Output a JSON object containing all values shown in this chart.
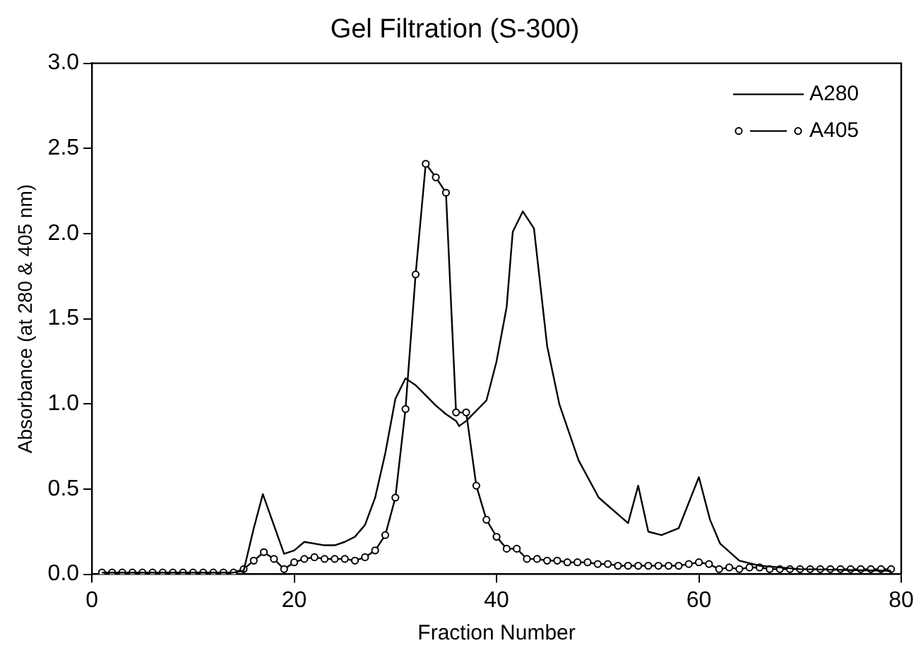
{
  "chart_data": {
    "type": "line",
    "title": "Gel Filtration (S-300)",
    "xlabel": "Fraction Number",
    "ylabel": "Absorbance (at 280 & 405 nm)",
    "xlim": [
      0,
      80
    ],
    "xticks": [
      0,
      20,
      40,
      60,
      80
    ],
    "ylim": [
      0,
      3
    ],
    "yticks": [
      {
        "value": 0,
        "label": "0.0"
      },
      {
        "value": 0.5,
        "label": "0.5"
      },
      {
        "value": 1,
        "label": "1.0"
      },
      {
        "value": 1.5,
        "label": "1.5"
      },
      {
        "value": 2,
        "label": "2.0"
      },
      {
        "value": 2.5,
        "label": "2.5"
      },
      {
        "value": 3,
        "label": "3.0"
      }
    ],
    "grid": false,
    "legend": "top right",
    "marker": "circle",
    "line_style": "solid",
    "series": [
      {
        "name": "A280",
        "color": "#000000",
        "marker": "none",
        "x": [
          1,
          14,
          15,
          16,
          16.9,
          19,
          20,
          21,
          23,
          24,
          25,
          26,
          27,
          28,
          29,
          30,
          31,
          32,
          33,
          34,
          35,
          36,
          36.3,
          37,
          39,
          40,
          41,
          41.6,
          42.6,
          43.7,
          45,
          46.2,
          48.1,
          50.1,
          53,
          54,
          55,
          56.3,
          58,
          60,
          61.1,
          62.1,
          64,
          66,
          70,
          79
        ],
        "values": [
          0.01,
          0.01,
          0.02,
          0.27,
          0.47,
          0.12,
          0.14,
          0.19,
          0.17,
          0.17,
          0.19,
          0.22,
          0.29,
          0.45,
          0.71,
          1.03,
          1.15,
          1.11,
          1.05,
          0.99,
          0.94,
          0.9,
          0.87,
          0.9,
          1.02,
          1.25,
          1.57,
          2.01,
          2.13,
          2.03,
          1.34,
          1.0,
          0.67,
          0.45,
          0.3,
          0.52,
          0.25,
          0.23,
          0.27,
          0.57,
          0.32,
          0.18,
          0.08,
          0.05,
          0.03,
          0.02
        ]
      },
      {
        "name": "A405",
        "color": "#000000",
        "x": [
          1,
          2,
          3,
          4,
          5,
          6,
          7,
          8,
          9,
          10,
          11,
          12,
          13,
          14,
          15,
          16,
          17,
          18,
          19,
          20,
          21,
          22,
          23,
          24,
          25,
          26,
          27,
          28,
          29,
          30,
          31,
          32,
          33,
          34,
          35,
          36,
          37,
          38,
          39,
          40,
          41,
          42,
          43,
          44,
          45,
          46,
          47,
          48,
          49,
          50,
          51,
          52,
          53,
          54,
          55,
          56,
          57,
          58,
          59,
          60,
          61,
          62,
          63,
          64,
          65,
          66,
          67,
          68,
          69,
          70,
          71,
          72,
          73,
          74,
          75,
          76,
          77,
          78,
          79
        ],
        "values": [
          0.01,
          0.01,
          0.01,
          0.01,
          0.01,
          0.01,
          0.01,
          0.01,
          0.01,
          0.01,
          0.01,
          0.01,
          0.01,
          0.01,
          0.03,
          0.08,
          0.13,
          0.09,
          0.03,
          0.07,
          0.09,
          0.1,
          0.09,
          0.09,
          0.09,
          0.08,
          0.1,
          0.14,
          0.23,
          0.45,
          0.97,
          1.76,
          2.41,
          2.33,
          2.24,
          0.95,
          0.95,
          0.52,
          0.32,
          0.22,
          0.15,
          0.15,
          0.09,
          0.09,
          0.08,
          0.08,
          0.07,
          0.07,
          0.07,
          0.06,
          0.06,
          0.05,
          0.05,
          0.05,
          0.05,
          0.05,
          0.05,
          0.05,
          0.06,
          0.07,
          0.06,
          0.03,
          0.04,
          0.03,
          0.04,
          0.04,
          0.03,
          0.03,
          0.03,
          0.03,
          0.03,
          0.03,
          0.03,
          0.03,
          0.03,
          0.03,
          0.03,
          0.03,
          0.03
        ]
      }
    ]
  }
}
